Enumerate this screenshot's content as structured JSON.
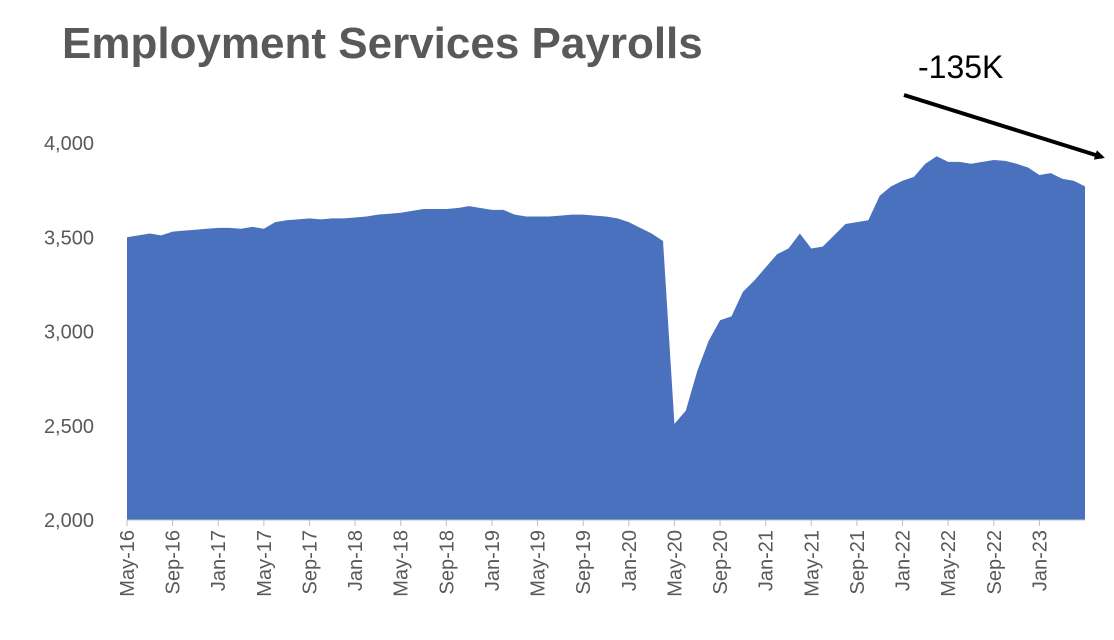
{
  "chart_data": {
    "type": "area",
    "title": "Employment Services Payrolls",
    "xlabel": "",
    "ylabel": "",
    "ylim": [
      2000,
      4000
    ],
    "yticks": [
      "2,000",
      "2,500",
      "3,000",
      "3,500",
      "4,000"
    ],
    "ytick_values": [
      2000,
      2500,
      3000,
      3500,
      4000
    ],
    "xticks": [
      "May-16",
      "Sep-16",
      "Jan-17",
      "May-17",
      "Sep-17",
      "Jan-18",
      "May-18",
      "Sep-18",
      "Jan-19",
      "May-19",
      "Sep-19",
      "Jan-20",
      "May-20",
      "Sep-20",
      "Jan-21",
      "May-21",
      "Sep-21",
      "Jan-22",
      "May-22",
      "Sep-22",
      "Jan-23"
    ],
    "grid": false,
    "legend": "none",
    "color": "#4a71bd",
    "annotation": {
      "text": "-135K",
      "arrow": "down-right toward end of series"
    },
    "series": [
      {
        "x": [
          "May-16",
          "Jun-16",
          "Jul-16",
          "Aug-16",
          "Sep-16",
          "Oct-16",
          "Nov-16",
          "Dec-16",
          "Jan-17",
          "Feb-17",
          "Mar-17",
          "Apr-17",
          "May-17",
          "Jun-17",
          "Jul-17",
          "Aug-17",
          "Sep-17",
          "Oct-17",
          "Nov-17",
          "Dec-17",
          "Jan-18",
          "Feb-18",
          "Mar-18",
          "Apr-18",
          "May-18",
          "Jun-18",
          "Jul-18",
          "Aug-18",
          "Sep-18",
          "Oct-18",
          "Nov-18",
          "Dec-18",
          "Jan-19",
          "Feb-19",
          "Mar-19",
          "Apr-19",
          "May-19",
          "Jun-19",
          "Jul-19",
          "Aug-19",
          "Sep-19",
          "Oct-19",
          "Nov-19",
          "Dec-19",
          "Jan-20",
          "Feb-20",
          "Mar-20",
          "Apr-20",
          "May-20",
          "Jun-20",
          "Jul-20",
          "Aug-20",
          "Sep-20",
          "Oct-20",
          "Nov-20",
          "Dec-20",
          "Jan-21",
          "Feb-21",
          "Mar-21",
          "Apr-21",
          "May-21",
          "Jun-21",
          "Jul-21",
          "Aug-21",
          "Sep-21",
          "Oct-21",
          "Nov-21",
          "Dec-21",
          "Jan-22",
          "Feb-22",
          "Mar-22",
          "Apr-22",
          "May-22",
          "Jun-22",
          "Jul-22",
          "Aug-22",
          "Sep-22",
          "Oct-22",
          "Nov-22",
          "Dec-22",
          "Jan-23",
          "Feb-23",
          "Mar-23",
          "Apr-23",
          "May-23"
        ],
        "values": [
          3500,
          3510,
          3520,
          3510,
          3530,
          3535,
          3540,
          3545,
          3550,
          3550,
          3545,
          3555,
          3545,
          3580,
          3590,
          3595,
          3600,
          3595,
          3600,
          3600,
          3605,
          3610,
          3620,
          3625,
          3630,
          3640,
          3650,
          3650,
          3650,
          3655,
          3665,
          3655,
          3645,
          3645,
          3620,
          3610,
          3610,
          3610,
          3615,
          3620,
          3620,
          3615,
          3610,
          3600,
          3580,
          3550,
          3520,
          3480,
          2510,
          2580,
          2790,
          2950,
          3060,
          3080,
          3210,
          3270,
          3340,
          3410,
          3440,
          3520,
          3440,
          3450,
          3510,
          3570,
          3580,
          3590,
          3720,
          3770,
          3800,
          3820,
          3890,
          3930,
          3900,
          3900,
          3890,
          3900,
          3910,
          3905,
          3890,
          3870,
          3830,
          3840,
          3810,
          3800,
          3770
        ]
      }
    ]
  }
}
